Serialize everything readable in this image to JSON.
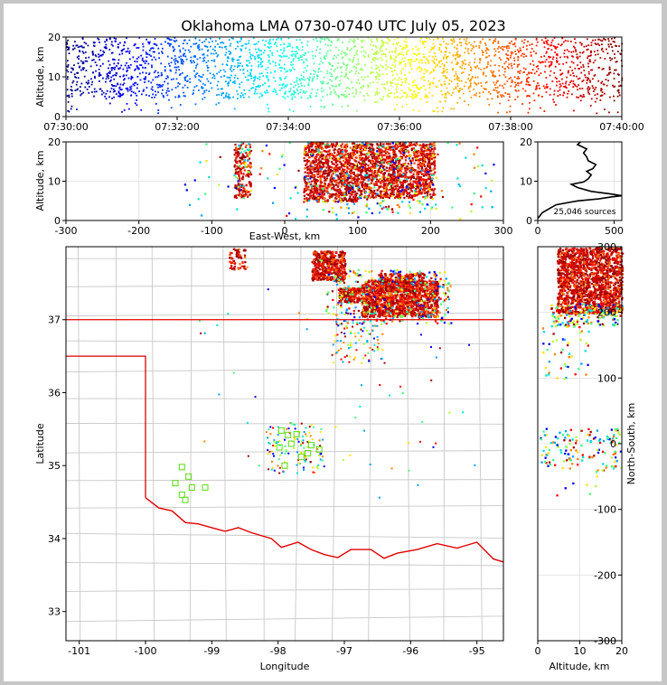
{
  "title": "Oklahoma LMA 0730-0740 UTC July 05, 2023",
  "sources_label": "25,046 sources",
  "chart_data": [
    {
      "panel": "time-altitude",
      "type": "scatter",
      "xlabel": "",
      "ylabel": "Altitude, km",
      "x_ticks": [
        "07:30:00",
        "07:32:00",
        "07:34:00",
        "07:36:00",
        "07:38:00",
        "07:40:00"
      ],
      "xlim": [
        "07:30:00",
        "07:40:00"
      ],
      "ylim": [
        0,
        20
      ],
      "y_ticks": [
        0,
        10,
        20
      ],
      "color_scale": "jet, by time"
    },
    {
      "panel": "east-west-altitude",
      "type": "scatter",
      "xlabel": "East-West, km",
      "ylabel": "Altitude, km",
      "xlim": [
        -300,
        300
      ],
      "x_ticks": [
        -300,
        -200,
        -100,
        0,
        100,
        200,
        300
      ],
      "ylim": [
        0,
        20
      ],
      "y_ticks": [
        0,
        10,
        20
      ],
      "grid": true
    },
    {
      "panel": "altitude-histogram",
      "type": "line",
      "xlabel": "",
      "ylabel": "",
      "xlim": [
        0,
        550
      ],
      "x_ticks": [
        0,
        500
      ],
      "ylim": [
        0,
        20
      ],
      "y_ticks": [
        0,
        10,
        20
      ],
      "profile": [
        [
          0,
          0.5
        ],
        [
          30,
          2
        ],
        [
          120,
          4
        ],
        [
          260,
          5
        ],
        [
          400,
          5.5
        ],
        [
          480,
          6
        ],
        [
          550,
          6.3
        ],
        [
          470,
          6.8
        ],
        [
          350,
          7.4
        ],
        [
          260,
          8.4
        ],
        [
          220,
          9.2
        ],
        [
          300,
          9.8
        ],
        [
          330,
          10.6
        ],
        [
          350,
          11.6
        ],
        [
          320,
          12.5
        ],
        [
          360,
          13.2
        ],
        [
          380,
          14.2
        ],
        [
          330,
          15.2
        ],
        [
          320,
          16.2
        ],
        [
          300,
          17.2
        ],
        [
          320,
          18.2
        ],
        [
          260,
          19.3
        ],
        [
          280,
          20
        ]
      ]
    },
    {
      "panel": "plan-view",
      "type": "map",
      "xlabel": "Longitude",
      "ylabel": "Latitude",
      "xlim": [
        -101.2,
        -94.6
      ],
      "x_ticks": [
        -101,
        -100,
        -99,
        -98,
        -97,
        -96,
        -95
      ],
      "ylim": [
        32.6,
        38.0
      ],
      "y_ticks": [
        33,
        34,
        35,
        36,
        37
      ]
    },
    {
      "panel": "altitude-north-south",
      "type": "scatter",
      "xlabel": "Altitude, km",
      "ylabel": "North-South, km",
      "xlim": [
        0,
        20
      ],
      "x_ticks": [
        0,
        10,
        20
      ],
      "ylim": [
        -300,
        300
      ],
      "y_ticks": [
        -300,
        -200,
        -100,
        0,
        100,
        200,
        300
      ],
      "grid": true
    }
  ],
  "stations": [
    [
      -99.45,
      34.98
    ],
    [
      -99.35,
      34.85
    ],
    [
      -99.55,
      34.76
    ],
    [
      -99.3,
      34.7
    ],
    [
      -99.45,
      34.6
    ],
    [
      -99.4,
      34.53
    ],
    [
      -99.1,
      34.7
    ],
    [
      -97.95,
      35.48
    ],
    [
      -97.98,
      35.25
    ],
    [
      -97.8,
      35.3
    ],
    [
      -97.85,
      35.42
    ],
    [
      -97.72,
      35.43
    ],
    [
      -97.5,
      35.28
    ],
    [
      -97.55,
      35.17
    ],
    [
      -97.65,
      35.12
    ],
    [
      -97.38,
      35.22
    ],
    [
      -97.9,
      35.0
    ]
  ],
  "colors": {
    "border": "#e00000",
    "county": "#c8c8c8",
    "station": "#66dd22"
  }
}
